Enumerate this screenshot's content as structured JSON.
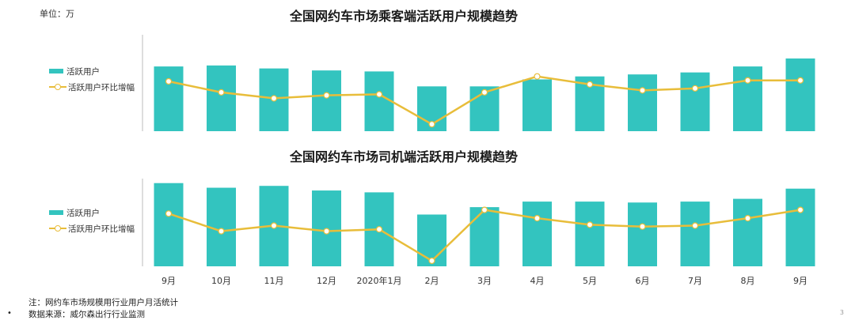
{
  "unit_label": "单位：万",
  "chart_data": [
    {
      "type": "bar",
      "title": "全国网约车市场乘客端活跃用户规模趋势",
      "categories": [
        "9月",
        "10月",
        "11月",
        "12月",
        "2020年1月",
        "2月",
        "3月",
        "4月",
        "5月",
        "6月",
        "7月",
        "8月",
        "9月"
      ],
      "series": [
        {
          "name": "活跃用户",
          "type": "bar",
          "values": [
            65,
            66,
            63,
            61,
            60,
            45,
            45,
            52,
            55,
            57,
            59,
            65,
            73
          ]
        },
        {
          "name": "活跃用户环比增幅",
          "type": "line",
          "values": [
            50,
            39,
            33,
            36,
            37,
            7,
            39,
            55,
            47,
            41,
            43,
            51,
            51
          ]
        }
      ],
      "ylim": [
        0,
        100
      ]
    },
    {
      "type": "bar",
      "title": "全国网约车市场司机端活跃用户规模趋势",
      "categories": [
        "9月",
        "10月",
        "11月",
        "12月",
        "2020年1月",
        "2月",
        "3月",
        "4月",
        "5月",
        "6月",
        "7月",
        "8月",
        "9月"
      ],
      "series": [
        {
          "name": "活跃用户",
          "type": "bar",
          "values": [
            90,
            85,
            87,
            82,
            80,
            56,
            64,
            70,
            70,
            69,
            70,
            73,
            84
          ]
        },
        {
          "name": "活跃用户环比增幅",
          "type": "line",
          "values": [
            57,
            38,
            44,
            38,
            40,
            6,
            61,
            52,
            45,
            43,
            44,
            52,
            61
          ]
        }
      ],
      "ylim": [
        0,
        100
      ]
    }
  ],
  "legend": {
    "bar_label": "活跃用户",
    "line_label": "活跃用户环比增幅"
  },
  "colors": {
    "bar": "#33c4bf",
    "line": "#e8bd3a",
    "marker_fill": "#ffffff",
    "axis": "#bbbbbb"
  },
  "notes": {
    "note": "注：网约车市场规模用行业用户月活统计",
    "source": "数据来源：威尔森出行行业监测"
  },
  "bullet": "•",
  "page_number": "3"
}
